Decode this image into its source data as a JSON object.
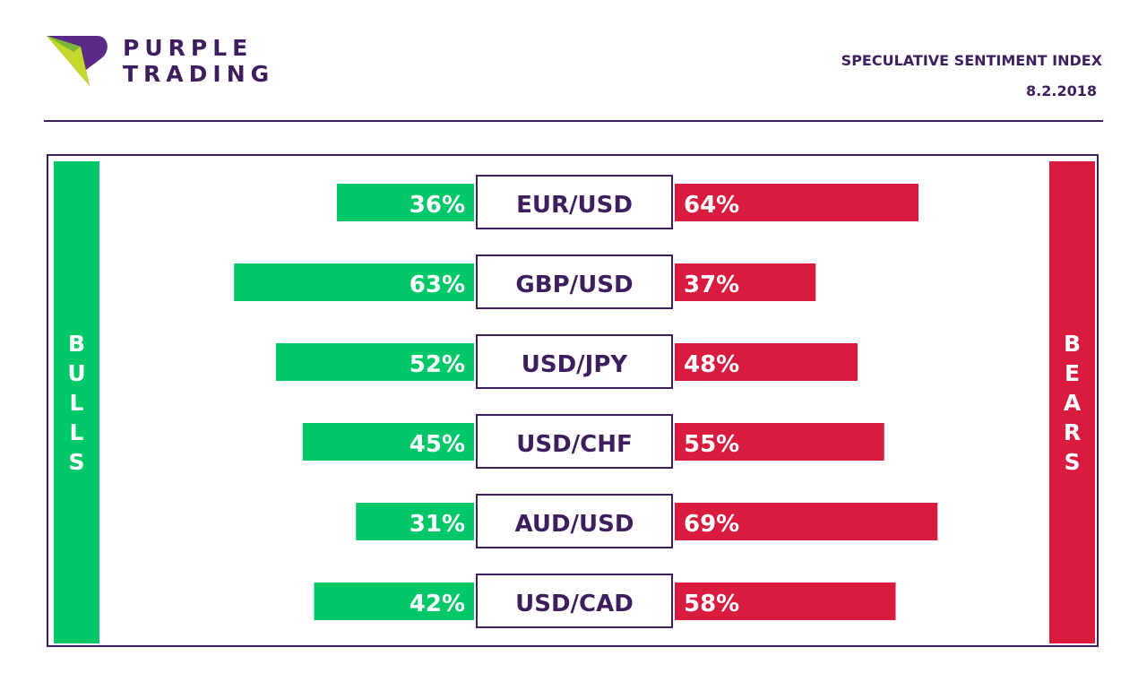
{
  "brand": {
    "line1": "PURPLE",
    "line2": "TRADING"
  },
  "header": {
    "title": "SPECULATIVE SENTIMENT INDEX",
    "date": "8.2.2018"
  },
  "sides": {
    "bulls": "BULLS",
    "bears": "BEARS"
  },
  "colors": {
    "bulls": "#00c868",
    "bears": "#d81b3f",
    "accent": "#3e1f5e",
    "logo_green": "#c5d82e"
  },
  "chart_data": {
    "type": "bar",
    "categories": [
      "EUR/USD",
      "GBP/USD",
      "USD/JPY",
      "USD/CHF",
      "AUD/USD",
      "USD/CAD"
    ],
    "series": [
      {
        "name": "BULLS",
        "values": [
          36,
          63,
          52,
          45,
          31,
          42
        ],
        "labels": [
          "36%",
          "63%",
          "52%",
          "45%",
          "31%",
          "42%"
        ]
      },
      {
        "name": "BEARS",
        "values": [
          64,
          37,
          48,
          55,
          69,
          58
        ],
        "labels": [
          "64%",
          "37%",
          "48%",
          "55%",
          "69%",
          "58%"
        ]
      }
    ],
    "title": "SPECULATIVE SENTIMENT INDEX",
    "xlabel": "",
    "ylabel": ""
  }
}
